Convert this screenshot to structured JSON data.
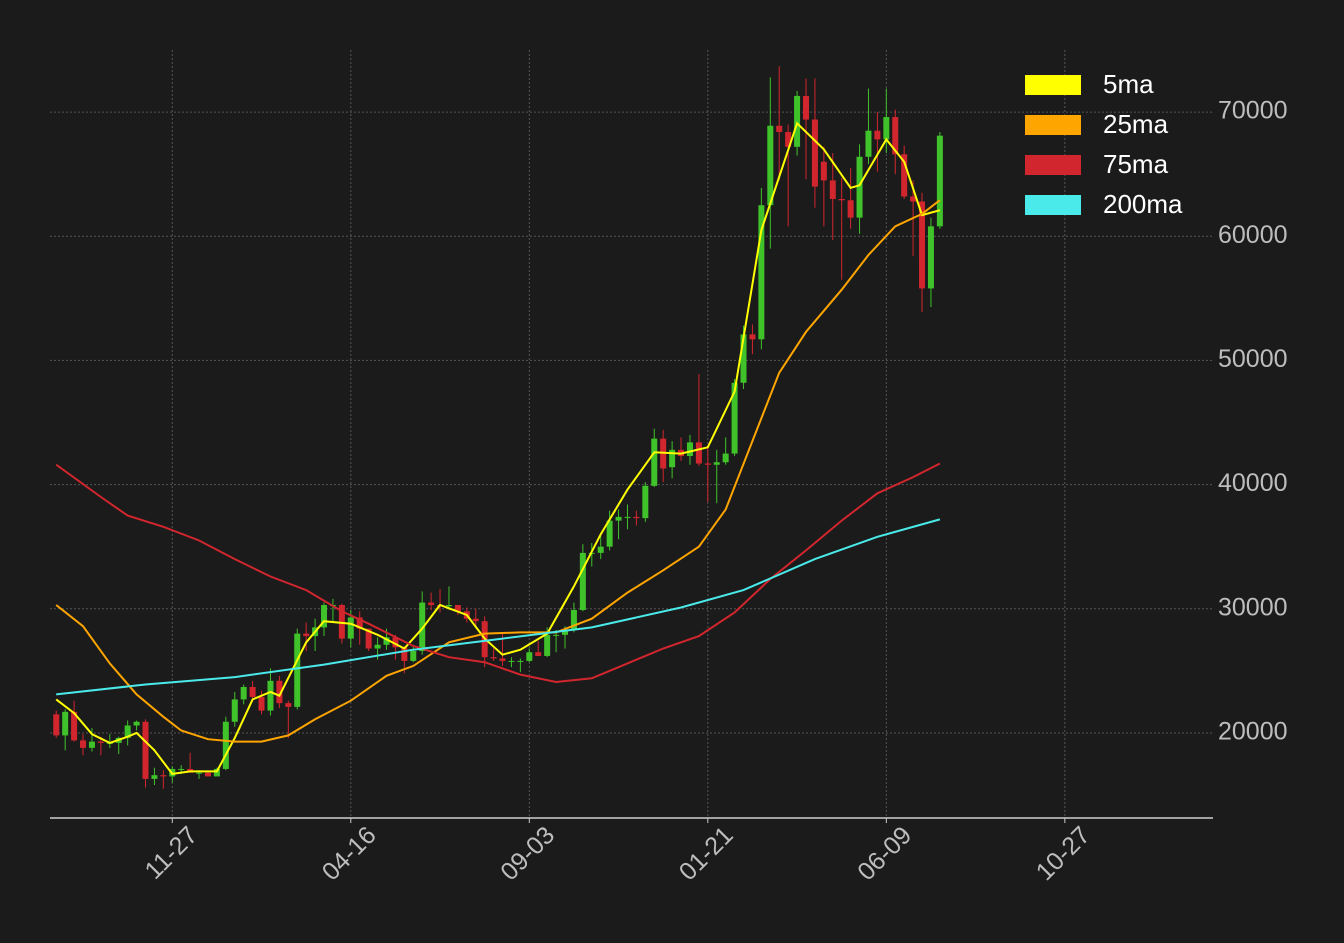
{
  "chart_data": {
    "type": "candlestick",
    "open": [
      21500,
      19800,
      21700,
      19400,
      18800,
      19300,
      19200,
      19200,
      19600,
      20600,
      20900,
      16300,
      16600,
      16500,
      17100,
      17100,
      16800,
      16800,
      16500,
      17100,
      20900,
      22700,
      23700,
      22900,
      21800,
      24200,
      22400,
      22100,
      28000,
      27800,
      28500,
      30300,
      30300,
      27600,
      29300,
      28400,
      26800,
      27100,
      27700,
      26900,
      25800,
      26600,
      30500,
      30300,
      30200,
      30300,
      29800,
      29200,
      29000,
      26100,
      26000,
      25800,
      25800,
      25800,
      26500,
      26200,
      27900,
      27900,
      28300,
      29900,
      34500,
      34500,
      35000,
      37100,
      37400,
      37400,
      37300,
      39900,
      43700,
      41400,
      42800,
      42300,
      43400,
      41700,
      41600,
      41800,
      42500,
      48200,
      52100,
      51700,
      62500,
      68900,
      68400,
      67200,
      71300,
      69400,
      66000,
      64500,
      63000,
      62900,
      61500,
      66400,
      68500,
      67800,
      69600,
      66600,
      63200,
      62800,
      55800,
      60800
    ],
    "high": [
      21800,
      21900,
      22600,
      19900,
      20400,
      19700,
      19900,
      19700,
      21000,
      21000,
      21100,
      17200,
      17000,
      17300,
      17400,
      18400,
      17000,
      16900,
      17200,
      21300,
      23300,
      23900,
      24200,
      23400,
      25200,
      24600,
      22600,
      28400,
      28900,
      29200,
      30500,
      30800,
      30400,
      29900,
      29800,
      28400,
      27700,
      28400,
      27900,
      27000,
      27100,
      31400,
      31300,
      31600,
      31800,
      30300,
      30100,
      30000,
      29400,
      26800,
      28100,
      26100,
      26000,
      26800,
      27400,
      28500,
      28300,
      28600,
      30500,
      35200,
      35300,
      35900,
      37900,
      38000,
      38400,
      37900,
      40200,
      44500,
      44400,
      43500,
      43800,
      44000,
      48900,
      43200,
      42800,
      43800,
      48500,
      52800,
      52900,
      63900,
      72800,
      73700,
      69000,
      71700,
      72700,
      72700,
      67200,
      66700,
      64700,
      65500,
      67400,
      71900,
      70000,
      71900,
      70200,
      67300,
      64500,
      63500,
      61500,
      68400
    ],
    "low": [
      19600,
      18600,
      19300,
      18200,
      18500,
      18200,
      18800,
      18300,
      19000,
      20200,
      15600,
      15800,
      15500,
      16000,
      16700,
      16900,
      16300,
      16500,
      16500,
      17000,
      20500,
      22300,
      22500,
      21500,
      21400,
      22000,
      19600,
      21900,
      26600,
      26600,
      27800,
      29000,
      27200,
      26900,
      27100,
      26600,
      25900,
      26700,
      25900,
      24800,
      25700,
      26300,
      29900,
      29700,
      29900,
      29500,
      28900,
      28600,
      25300,
      25800,
      25400,
      25300,
      24900,
      25700,
      26300,
      26100,
      26500,
      26800,
      28100,
      29800,
      33400,
      34000,
      34700,
      35600,
      36400,
      36700,
      37000,
      39800,
      40200,
      40500,
      41900,
      41600,
      41500,
      38600,
      38500,
      41600,
      42300,
      47700,
      50500,
      50900,
      59000,
      64500,
      60800,
      66500,
      64600,
      62300,
      60800,
      59700,
      56500,
      60600,
      60200,
      65800,
      65200,
      66700,
      65000,
      63000,
      58400,
      53900,
      54300,
      60600
    ],
    "close": [
      19800,
      21700,
      19400,
      18800,
      19300,
      19200,
      19200,
      19600,
      20600,
      20900,
      16300,
      16600,
      16500,
      17100,
      17100,
      16800,
      16800,
      16500,
      17100,
      20900,
      22700,
      23700,
      22900,
      21800,
      24200,
      22400,
      22100,
      28000,
      27800,
      28500,
      30300,
      30300,
      27600,
      29300,
      28400,
      26800,
      27100,
      27700,
      26900,
      25800,
      26600,
      30500,
      30300,
      30200,
      30300,
      29800,
      29200,
      29000,
      26100,
      26000,
      25800,
      25800,
      25800,
      26500,
      26200,
      27900,
      27900,
      28300,
      29900,
      34500,
      34500,
      35000,
      37100,
      37400,
      37400,
      37300,
      39900,
      43700,
      41300,
      42800,
      42300,
      43400,
      41700,
      41600,
      41800,
      42500,
      48200,
      52100,
      51700,
      62500,
      68900,
      68400,
      67200,
      71300,
      69400,
      64000,
      64500,
      63000,
      62900,
      61500,
      66400,
      68500,
      67800,
      69600,
      66600,
      63200,
      62800,
      55800,
      60800,
      68100
    ],
    "up_color": "#3fc22a",
    "down_color": "#d2262e",
    "lines": [
      {
        "name": "5ma",
        "color": "#ffff00",
        "x": [
          0,
          2,
          4,
          6,
          8,
          9,
          11,
          13,
          15,
          18,
          20,
          22,
          24,
          25,
          28,
          30,
          33,
          36,
          39,
          41,
          43,
          46,
          48,
          50,
          52,
          55,
          58,
          61,
          64,
          67,
          70,
          73,
          76,
          79,
          83,
          86,
          89,
          90,
          93,
          95,
          97,
          99
        ],
        "values": [
          22700,
          21600,
          19900,
          19200,
          19700,
          20000,
          18600,
          16700,
          16900,
          16900,
          19600,
          22700,
          23300,
          23000,
          27300,
          29000,
          28800,
          27900,
          26800,
          28400,
          30300,
          29500,
          27600,
          26300,
          26700,
          28000,
          31800,
          36000,
          39600,
          42600,
          42500,
          43000,
          47500,
          60500,
          69100,
          67000,
          63900,
          64100,
          67800,
          66000,
          61700,
          62100
        ]
      },
      {
        "name": "25ma",
        "color": "#ffa500",
        "x": [
          0,
          3,
          6,
          9,
          12,
          14,
          17,
          20,
          23,
          26,
          29,
          33,
          37,
          40,
          44,
          48,
          52,
          56,
          60,
          64,
          68,
          72,
          75,
          78,
          81,
          84,
          88,
          91,
          94,
          97,
          99
        ],
        "values": [
          30300,
          28600,
          25600,
          23100,
          21300,
          20200,
          19500,
          19300,
          19300,
          19800,
          21100,
          22600,
          24600,
          25400,
          27300,
          28000,
          28100,
          28100,
          29200,
          31300,
          33100,
          35000,
          38000,
          43500,
          49000,
          52300,
          55700,
          58500,
          60800,
          61800,
          62900
        ]
      },
      {
        "name": "75ma",
        "color": "#d2262e",
        "x": [
          0,
          5,
          8,
          12,
          16,
          20,
          24,
          28,
          32,
          35,
          40,
          44,
          48,
          52,
          56,
          60,
          64,
          68,
          72,
          76,
          80,
          84,
          88,
          92,
          96,
          99
        ],
        "values": [
          41600,
          39000,
          37500,
          36600,
          35500,
          34000,
          32600,
          31500,
          29800,
          28800,
          27000,
          26100,
          25700,
          24700,
          24100,
          24400,
          25600,
          26800,
          27800,
          29700,
          32400,
          34700,
          37100,
          39300,
          40600,
          41700
        ]
      },
      {
        "name": "200ma",
        "color": "#4aeaea",
        "x": [
          0,
          10,
          20,
          30,
          40,
          50,
          60,
          70,
          77,
          85,
          92,
          99
        ],
        "values": [
          23100,
          23900,
          24500,
          25500,
          26700,
          27600,
          28500,
          30100,
          31500,
          34000,
          35800,
          37200
        ]
      }
    ],
    "xlim": [
      -0.7,
      129.6
    ],
    "xticks": [
      {
        "value": 13,
        "label": "11-27"
      },
      {
        "value": 33,
        "label": "04-16"
      },
      {
        "value": 53,
        "label": "09-03"
      },
      {
        "value": 73,
        "label": "01-21"
      },
      {
        "value": 93,
        "label": "06-09"
      },
      {
        "value": 113,
        "label": "10-27"
      }
    ],
    "ylim": [
      13150,
      75000
    ],
    "yticks": [
      20000,
      30000,
      40000,
      50000,
      60000,
      70000
    ],
    "grid": true,
    "legend": "upper right"
  }
}
